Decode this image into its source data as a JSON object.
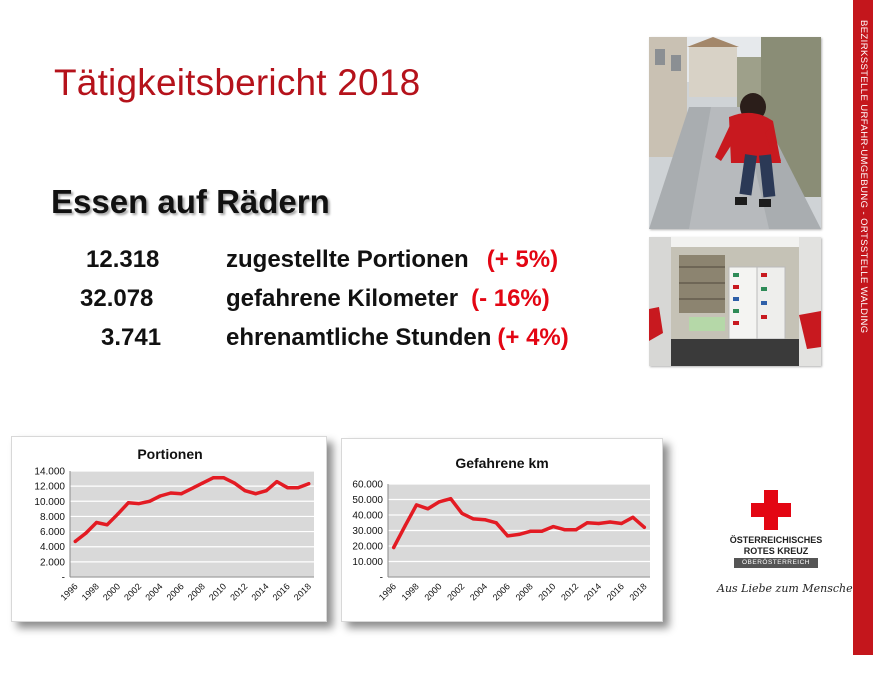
{
  "slide": {
    "title": "Tätigkeitsbericht 2018",
    "subtitle": "Essen auf Rädern",
    "stats": [
      {
        "value": "12.318",
        "label": "zugestellte Portionen",
        "change": "(+ 5%)"
      },
      {
        "value": "32.078",
        "label": "gefahrene Kilometer",
        "change": "(- 16%)"
      },
      {
        "value": "3.741",
        "label": "ehrenamtliche Stunden",
        "change": "(+ 4%)"
      }
    ],
    "sidebar_text": "BEZIRKSSTELLE URFAHR-UMGEBUNG - ORTSSTELLE WALDING"
  },
  "logo": {
    "line1": "ÖSTERREICHISCHES",
    "line2": "ROTES KREUZ",
    "badge": "OBERÖSTERREICH",
    "slogan": "Aus Liebe zum Menschen."
  },
  "colors": {
    "accent_red": "#b5121b",
    "highlight_red": "#e30613",
    "line_red": "#e31b23",
    "sidebar_red": "#c4161c"
  },
  "chart_data": [
    {
      "type": "line",
      "title": "Portionen",
      "xlabel": "",
      "ylabel": "",
      "x": [
        1996,
        1997,
        1998,
        1999,
        2000,
        2001,
        2002,
        2003,
        2004,
        2005,
        2006,
        2007,
        2008,
        2009,
        2010,
        2011,
        2012,
        2013,
        2014,
        2015,
        2016,
        2017,
        2018
      ],
      "x_tick_labels": [
        "1996",
        "1998",
        "2000",
        "2002",
        "2004",
        "2006",
        "2008",
        "2010",
        "2012",
        "2014",
        "2016",
        "2018"
      ],
      "y_tick_labels": [
        "14.000",
        "12.000",
        "10.000",
        "8.000",
        "6.000",
        "4.000",
        "2.000",
        "-"
      ],
      "ylim": [
        0,
        14000
      ],
      "grid": true,
      "legend": "none",
      "series": [
        {
          "values": [
            4700,
            5800,
            7200,
            6900,
            8300,
            9800,
            9700,
            10000,
            10700,
            11100,
            11000,
            11700,
            12400,
            13100,
            13100,
            12400,
            11400,
            11000,
            11400,
            12600,
            11800,
            11800,
            12318
          ]
        }
      ]
    },
    {
      "type": "line",
      "title": "Gefahrene km",
      "xlabel": "",
      "ylabel": "",
      "x": [
        1996,
        1997,
        1998,
        1999,
        2000,
        2001,
        2002,
        2003,
        2004,
        2005,
        2006,
        2007,
        2008,
        2009,
        2010,
        2011,
        2012,
        2013,
        2014,
        2015,
        2016,
        2017,
        2018
      ],
      "x_tick_labels": [
        "1996",
        "1998",
        "2000",
        "2002",
        "2004",
        "2006",
        "2008",
        "2010",
        "2012",
        "2014",
        "2016",
        "2018"
      ],
      "y_tick_labels": [
        "60.000",
        "50.000",
        "40.000",
        "30.000",
        "20.000",
        "10.000",
        "-"
      ],
      "ylim": [
        0,
        60000
      ],
      "grid": true,
      "legend": "none",
      "series": [
        {
          "values": [
            19000,
            33000,
            46500,
            44000,
            48500,
            50500,
            41000,
            37500,
            37000,
            35000,
            26500,
            27500,
            29500,
            29500,
            32500,
            30500,
            30500,
            35000,
            34500,
            35500,
            34500,
            38500,
            32078
          ]
        }
      ]
    }
  ]
}
